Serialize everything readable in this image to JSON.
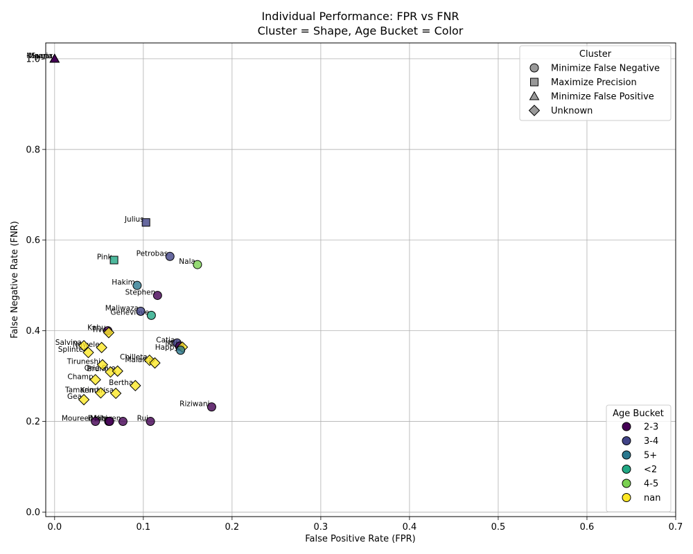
{
  "chart_data": {
    "type": "scatter",
    "title": "Individual Performance: FPR vs FNR",
    "subtitle": "Cluster = Shape, Age Bucket = Color",
    "xlabel": "False Positive Rate (FPR)",
    "ylabel": "False Negative Rate (FNR)",
    "xlim": [
      -0.01,
      0.7
    ],
    "ylim": [
      -0.01,
      1.035
    ],
    "xticks": [
      "0.0",
      "0.1",
      "0.2",
      "0.3",
      "0.4",
      "0.5",
      "0.6",
      "0.7"
    ],
    "xtick_values": [
      0.0,
      0.1,
      0.2,
      0.3,
      0.4,
      0.5,
      0.6,
      0.7
    ],
    "yticks": [
      "0.0",
      "0.2",
      "0.4",
      "0.6",
      "0.8",
      "1.0"
    ],
    "ytick_values": [
      0.0,
      0.2,
      0.4,
      0.6,
      0.8,
      1.0
    ],
    "grid": true,
    "cluster_legend": {
      "title": "Cluster",
      "position": "upper right",
      "entries": [
        {
          "label": "Minimize False Negative",
          "shape": "circle"
        },
        {
          "label": "Maximize Precision",
          "shape": "square"
        },
        {
          "label": "Minimize False Positive",
          "shape": "triangle"
        },
        {
          "label": "Unknown",
          "shape": "diamond"
        }
      ]
    },
    "age_legend": {
      "title": "Age Bucket",
      "position": "lower right",
      "entries": [
        {
          "label": "2-3",
          "color": "#440154"
        },
        {
          "label": "3-4",
          "color": "#414487"
        },
        {
          "label": "5+",
          "color": "#2a788e"
        },
        {
          "label": "<2",
          "color": "#22a884"
        },
        {
          "label": "4-5",
          "color": "#7ad151"
        },
        {
          "label": "nan",
          "color": "#fde725"
        }
      ]
    },
    "points": [
      {
        "name": "Sugar",
        "fpr": 0.0,
        "fnr": 1.0,
        "shape": "triangle",
        "age": "2-3"
      },
      {
        "name": "Moana",
        "fpr": 0.0,
        "fnr": 1.0,
        "shape": "triangle",
        "age": "2-3"
      },
      {
        "name": "Nigeria",
        "fpr": 0.0,
        "fnr": 1.0,
        "shape": "triangle",
        "age": "2-3"
      },
      {
        "name": "Julius",
        "fpr": 0.103,
        "fnr": 0.639,
        "shape": "square",
        "age": "3-4"
      },
      {
        "name": "Pink",
        "fpr": 0.067,
        "fnr": 0.556,
        "shape": "square",
        "age": "<2"
      },
      {
        "name": "Petrobas",
        "fpr": 0.13,
        "fnr": 0.564,
        "shape": "circle",
        "age": "3-4"
      },
      {
        "name": "Nala",
        "fpr": 0.161,
        "fnr": 0.546,
        "shape": "circle",
        "age": "4-5"
      },
      {
        "name": "Hakim",
        "fpr": 0.093,
        "fnr": 0.5,
        "shape": "circle",
        "age": "5+"
      },
      {
        "name": "Stephen",
        "fpr": 0.116,
        "fnr": 0.478,
        "shape": "circle",
        "age": "2-3"
      },
      {
        "name": "Maliwaza",
        "fpr": 0.097,
        "fnr": 0.443,
        "shape": "circle",
        "age": "3-4"
      },
      {
        "name": "Genevieve",
        "fpr": 0.109,
        "fnr": 0.434,
        "shape": "circle",
        "age": "<2"
      },
      {
        "name": "Kahu",
        "fpr": 0.06,
        "fnr": 0.4,
        "shape": "circle",
        "age": "2-3"
      },
      {
        "name": "Tiva",
        "fpr": 0.061,
        "fnr": 0.396,
        "shape": "diamond",
        "age": "nan"
      },
      {
        "name": "Catia",
        "fpr": 0.138,
        "fnr": 0.373,
        "shape": "circle",
        "age": "3-4"
      },
      {
        "name": "Ikili",
        "fpr": 0.141,
        "fnr": 0.366,
        "shape": "circle",
        "age": "2-3"
      },
      {
        "name": "Tiff",
        "fpr": 0.144,
        "fnr": 0.364,
        "shape": "diamond",
        "age": "nan"
      },
      {
        "name": "Happy",
        "fpr": 0.142,
        "fnr": 0.357,
        "shape": "circle",
        "age": "5+"
      },
      {
        "name": "Salvina",
        "fpr": 0.033,
        "fnr": 0.367,
        "shape": "diamond",
        "age": "nan"
      },
      {
        "name": "Ngwele",
        "fpr": 0.053,
        "fnr": 0.363,
        "shape": "diamond",
        "age": "nan"
      },
      {
        "name": "Splinter",
        "fpr": 0.038,
        "fnr": 0.352,
        "shape": "diamond",
        "age": "nan"
      },
      {
        "name": "Chilleta",
        "fpr": 0.107,
        "fnr": 0.335,
        "shape": "diamond",
        "age": "nan"
      },
      {
        "name": "Malaika",
        "fpr": 0.113,
        "fnr": 0.329,
        "shape": "diamond",
        "age": "nan"
      },
      {
        "name": "Tiruneshi",
        "fpr": 0.054,
        "fnr": 0.325,
        "shape": "diamond",
        "age": "nan"
      },
      {
        "name": "Bruno",
        "fpr": 0.063,
        "fnr": 0.309,
        "shape": "diamond",
        "age": "nan"
      },
      {
        "name": "Orie Sue",
        "fpr": 0.071,
        "fnr": 0.311,
        "shape": "diamond",
        "age": "nan"
      },
      {
        "name": "Champ",
        "fpr": 0.046,
        "fnr": 0.292,
        "shape": "diamond",
        "age": "nan"
      },
      {
        "name": "Bertha",
        "fpr": 0.091,
        "fnr": 0.279,
        "shape": "diamond",
        "age": "nan"
      },
      {
        "name": "Tamarind",
        "fpr": 0.052,
        "fnr": 0.263,
        "shape": "diamond",
        "age": "nan"
      },
      {
        "name": "Kemarisa",
        "fpr": 0.069,
        "fnr": 0.262,
        "shape": "diamond",
        "age": "nan"
      },
      {
        "name": "Gea",
        "fpr": 0.033,
        "fnr": 0.248,
        "shape": "diamond",
        "age": "nan"
      },
      {
        "name": "Riziwani",
        "fpr": 0.177,
        "fnr": 0.232,
        "shape": "circle",
        "age": "2-3"
      },
      {
        "name": "Moureen",
        "fpr": 0.046,
        "fnr": 0.2,
        "shape": "circle",
        "age": "2-3"
      },
      {
        "name": "Doris",
        "fpr": 0.061,
        "fnr": 0.2,
        "shape": "circle",
        "age": "2-3"
      },
      {
        "name": "Mabi",
        "fpr": 0.062,
        "fnr": 0.2,
        "shape": "circle",
        "age": "2-3"
      },
      {
        "name": "Kitoren",
        "fpr": 0.077,
        "fnr": 0.2,
        "shape": "circle",
        "age": "2-3"
      },
      {
        "name": "Rui",
        "fpr": 0.108,
        "fnr": 0.2,
        "shape": "circle",
        "age": "2-3"
      }
    ]
  }
}
